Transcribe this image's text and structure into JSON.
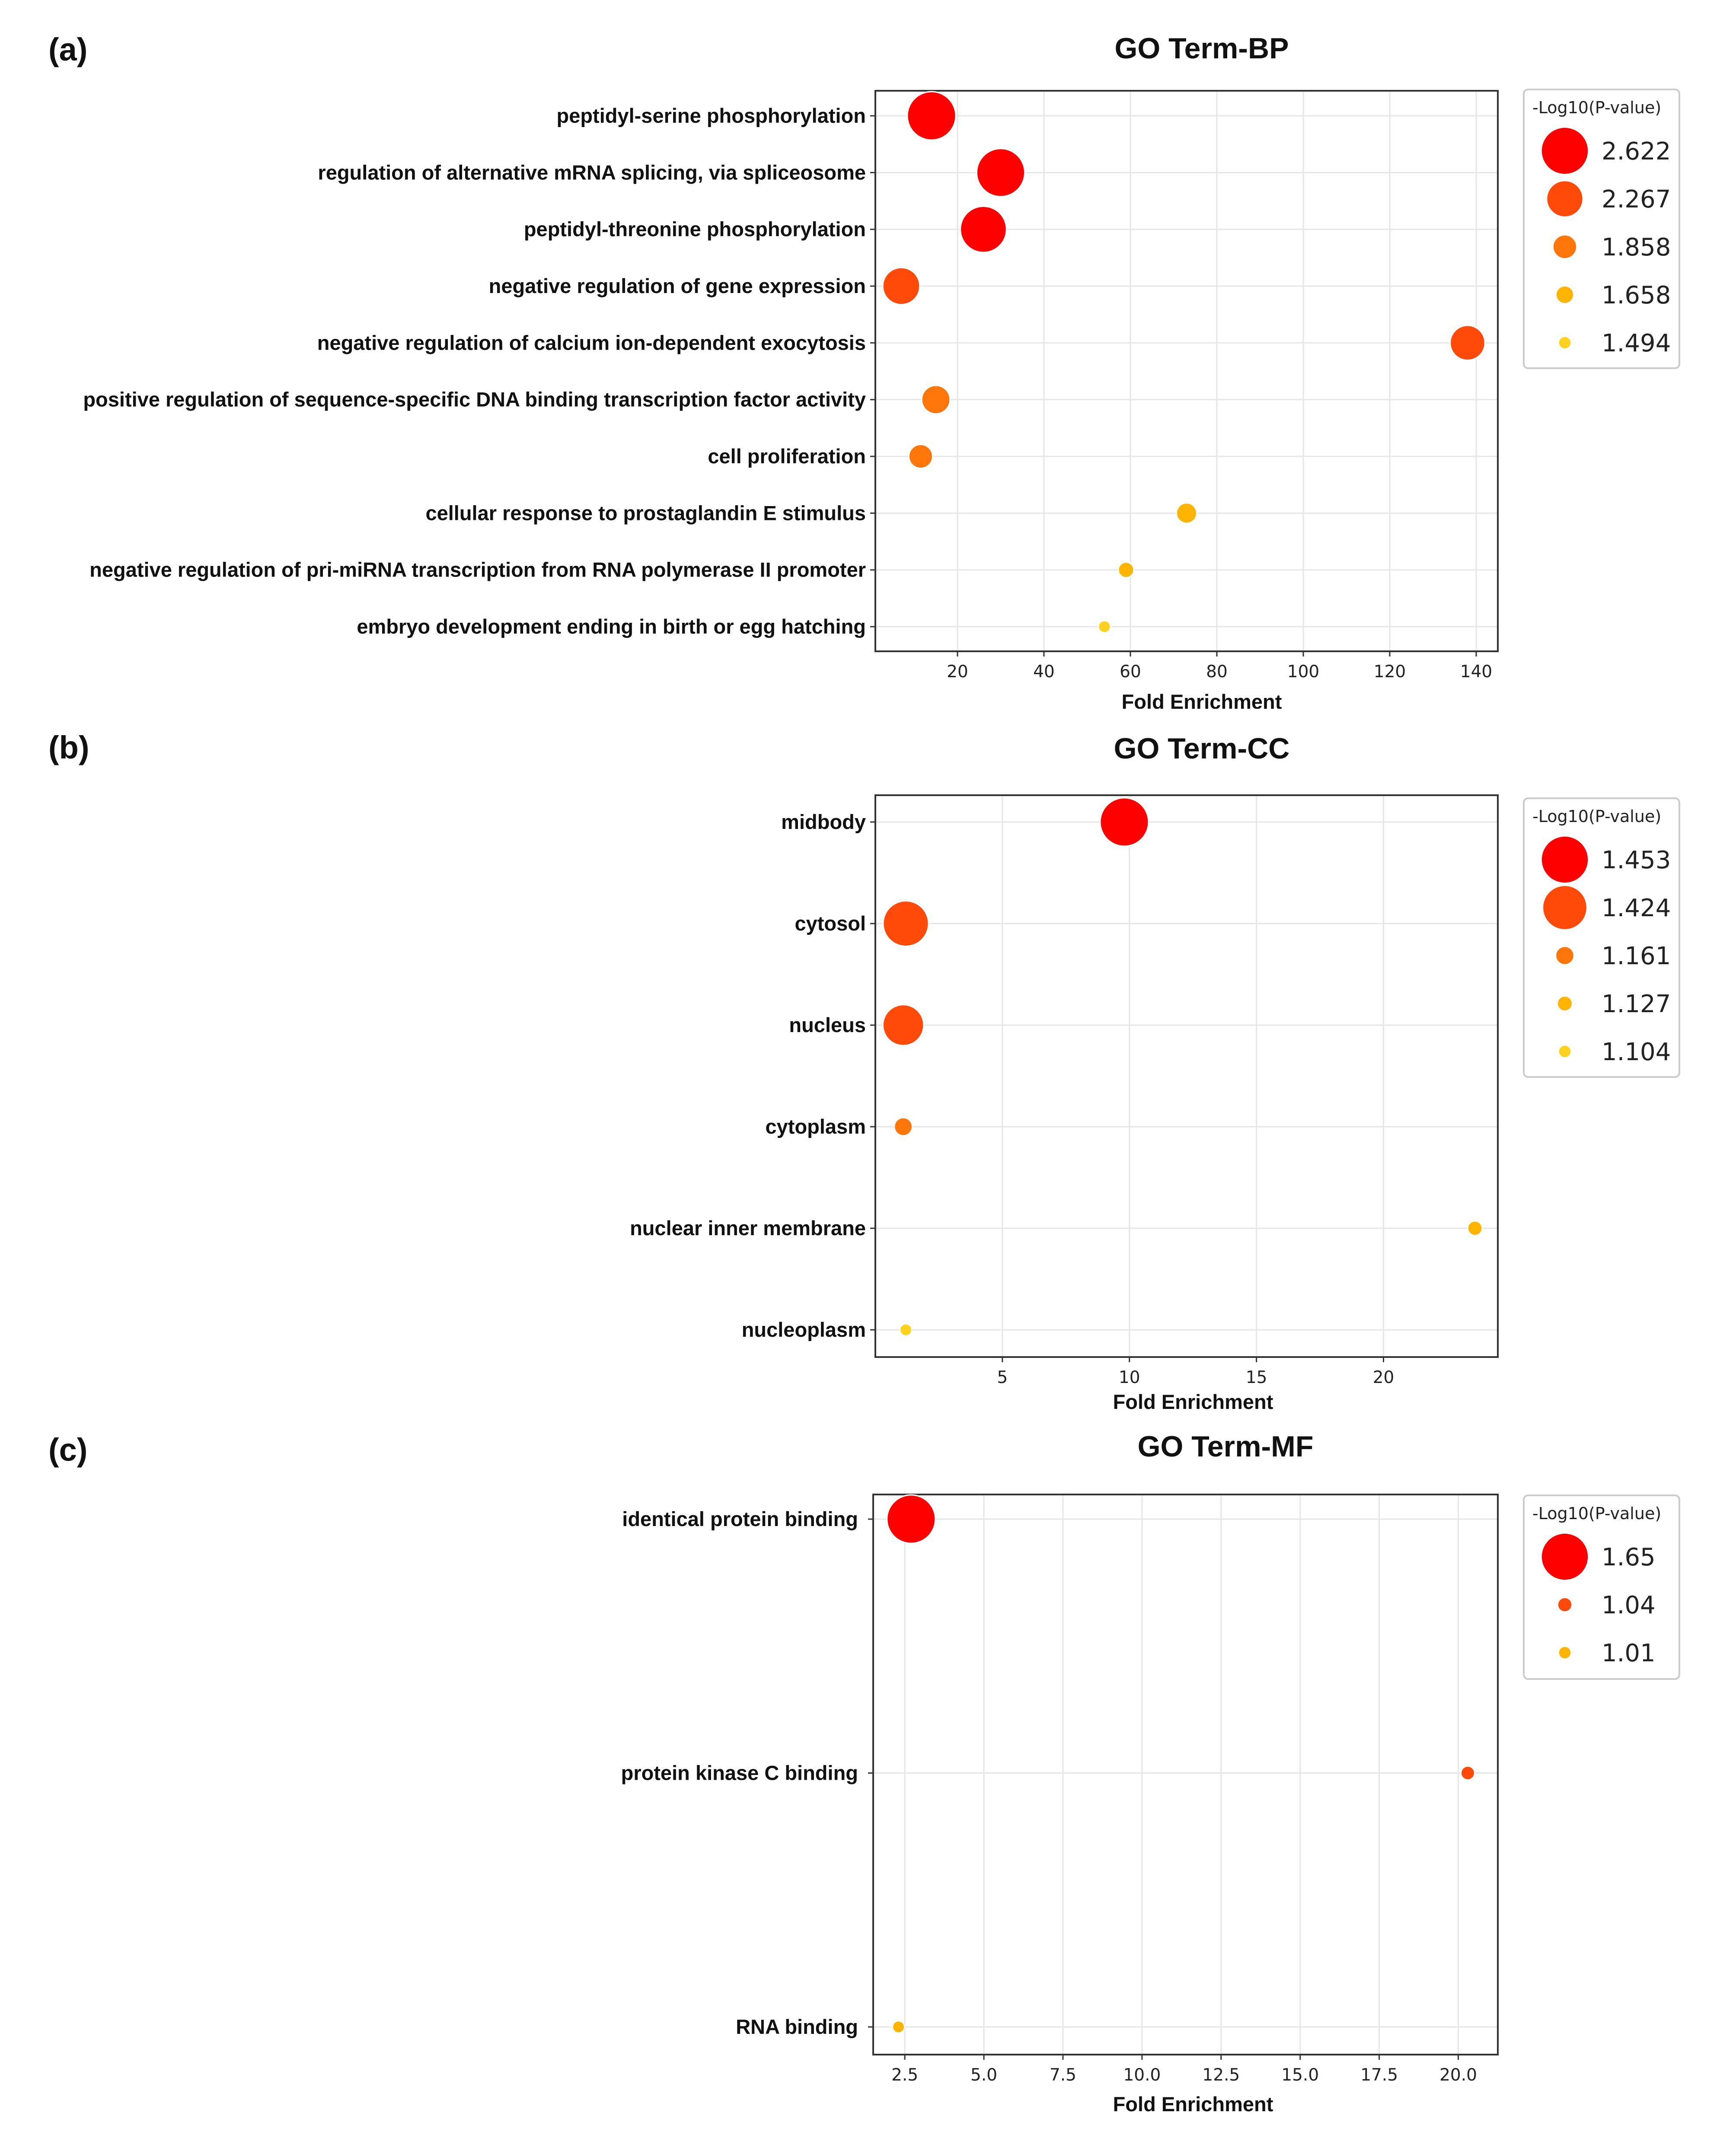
{
  "chart_data": [
    {
      "panel_label": "(a)",
      "type": "scatter",
      "title": "GO Term-BP",
      "xlabel": "Fold Enrichment",
      "ylabel": "",
      "xlim": [
        1,
        145
      ],
      "xticks": [
        "20",
        "40",
        "60",
        "80",
        "100",
        "120",
        "140"
      ],
      "grid": true,
      "legend": {
        "title": "-Log10(P-value)",
        "placement": "right",
        "values": [
          "2.622",
          "2.267",
          "1.858",
          "1.658",
          "1.494"
        ],
        "colors": [
          "#ff0000",
          "#ff4a0a",
          "#ff760a",
          "#ffb400",
          "#ffd21e"
        ]
      },
      "points": [
        {
          "term": "peptidyl-serine phosphorylation",
          "x": 14,
          "neglog10p": 2.622
        },
        {
          "term": "regulation of alternative mRNA splicing, via spliceosome",
          "x": 30,
          "neglog10p": 2.61
        },
        {
          "term": "peptidyl-threonine phosphorylation",
          "x": 26,
          "neglog10p": 2.55
        },
        {
          "term": "negative regulation of gene expression",
          "x": 7,
          "neglog10p": 2.267
        },
        {
          "term": "negative regulation of calcium ion-dependent exocytosis",
          "x": 138,
          "neglog10p": 2.2
        },
        {
          "term": "positive regulation of sequence-specific DNA binding transcription factor activity",
          "x": 15,
          "neglog10p": 2.0
        },
        {
          "term": "cell proliferation",
          "x": 11.5,
          "neglog10p": 1.858
        },
        {
          "term": "cellular response to prostaglandin E stimulus",
          "x": 73,
          "neglog10p": 1.75
        },
        {
          "term": "negative regulation of pri-miRNA transcription from RNA polymerase II promoter",
          "x": 59,
          "neglog10p": 1.6
        },
        {
          "term": "embryo development ending in birth or egg hatching",
          "x": 54,
          "neglog10p": 1.494
        }
      ]
    },
    {
      "panel_label": "(b)",
      "type": "scatter",
      "title": "GO Term-CC",
      "xlabel": "Fold Enrichment",
      "ylabel": "",
      "xlim": [
        0,
        24.5
      ],
      "xticks": [
        "5",
        "10",
        "15",
        "20"
      ],
      "grid": true,
      "legend": {
        "title": "-Log10(P-value)",
        "placement": "right",
        "values": [
          "1.453",
          "1.424",
          "1.161",
          "1.127",
          "1.104"
        ],
        "colors": [
          "#ff0000",
          "#ff4a0a",
          "#ff760a",
          "#ffb400",
          "#ffd21e"
        ]
      },
      "points": [
        {
          "term": "midbody",
          "x": 9.8,
          "neglog10p": 1.453
        },
        {
          "term": "cytosol",
          "x": 1.2,
          "neglog10p": 1.424
        },
        {
          "term": "nucleus",
          "x": 1.1,
          "neglog10p": 1.38
        },
        {
          "term": "cytoplasm",
          "x": 1.1,
          "neglog10p": 1.161
        },
        {
          "term": "nuclear inner membrane",
          "x": 23.6,
          "neglog10p": 1.127
        },
        {
          "term": "nucleoplasm",
          "x": 1.2,
          "neglog10p": 1.104
        }
      ]
    },
    {
      "panel_label": "(c)",
      "type": "scatter",
      "title": "GO Term-MF",
      "xlabel": "Fold Enrichment",
      "ylabel": "",
      "xlim": [
        1.5,
        21.25
      ],
      "xticks": [
        "2.5",
        "5.0",
        "7.5",
        "10.0",
        "12.5",
        "15.0",
        "17.5",
        "20.0"
      ],
      "grid": true,
      "legend": {
        "title": "-Log10(P-value)",
        "placement": "right",
        "values": [
          "1.65",
          "1.04",
          "1.01"
        ],
        "colors": [
          "#ff0000",
          "#ff4a0a",
          "#ffb400"
        ]
      },
      "points": [
        {
          "term": "identical protein binding",
          "x": 2.7,
          "neglog10p": 1.65
        },
        {
          "term": "protein kinase C binding",
          "x": 20.3,
          "neglog10p": 1.04
        },
        {
          "term": "RNA binding",
          "x": 2.3,
          "neglog10p": 1.01
        }
      ]
    }
  ]
}
